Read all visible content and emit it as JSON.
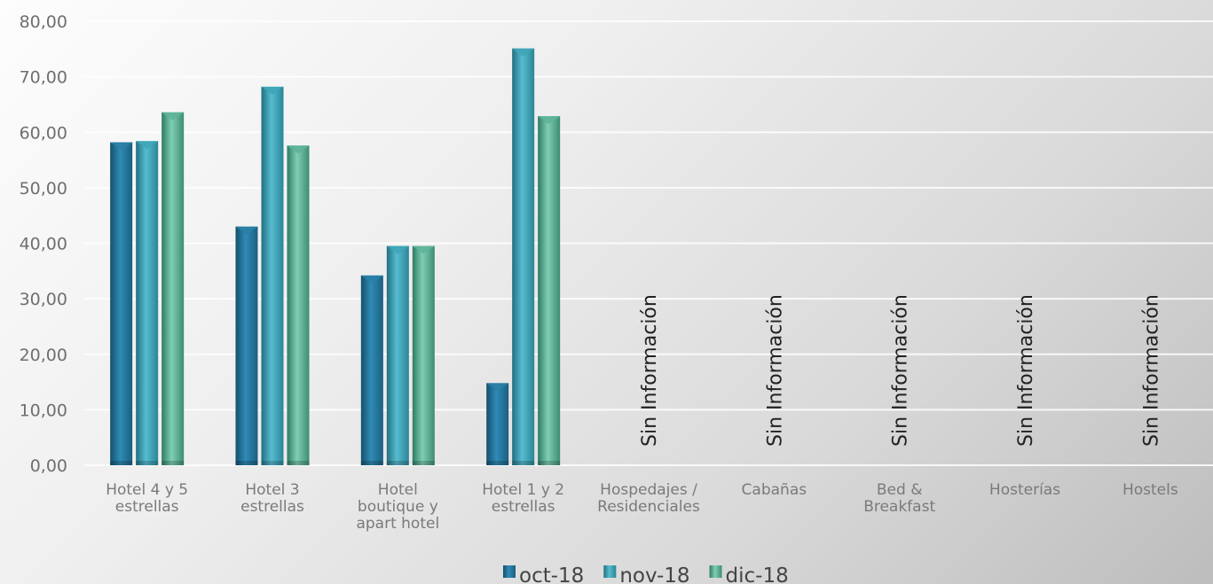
{
  "chart_data": {
    "type": "bar",
    "title": "",
    "xlabel": "",
    "ylabel": "",
    "ylim": [
      0,
      80
    ],
    "yticks": [
      "0,00",
      "10,00",
      "20,00",
      "30,00",
      "40,00",
      "50,00",
      "60,00",
      "70,00",
      "80,00"
    ],
    "grid": true,
    "legend_position": "bottom",
    "categories": [
      [
        "Hotel 4 y 5",
        "estrellas"
      ],
      [
        "Hotel 3",
        "estrellas"
      ],
      [
        "Hotel",
        "boutique y",
        "apart hotel"
      ],
      [
        "Hotel 1 y 2",
        "estrellas"
      ],
      [
        "Hospedajes /",
        "Residenciales"
      ],
      [
        "Cabañas"
      ],
      [
        "Bed &",
        "Breakfast"
      ],
      [
        "Hosterías"
      ],
      [
        "Hostels"
      ]
    ],
    "series": [
      {
        "name": "oct-18",
        "color": "#2a7fa6",
        "values": [
          58.2,
          43.0,
          34.2,
          14.8,
          null,
          null,
          null,
          null,
          null
        ]
      },
      {
        "name": "nov-18",
        "color": "#3fa5b8",
        "values": [
          58.4,
          68.2,
          39.5,
          75.1,
          null,
          null,
          null,
          null,
          null
        ]
      },
      {
        "name": "dic-18",
        "color": "#5eb49a",
        "values": [
          63.6,
          57.6,
          39.5,
          62.9,
          null,
          null,
          null,
          null,
          null
        ]
      }
    ],
    "no_data_label": "Sin Información"
  }
}
